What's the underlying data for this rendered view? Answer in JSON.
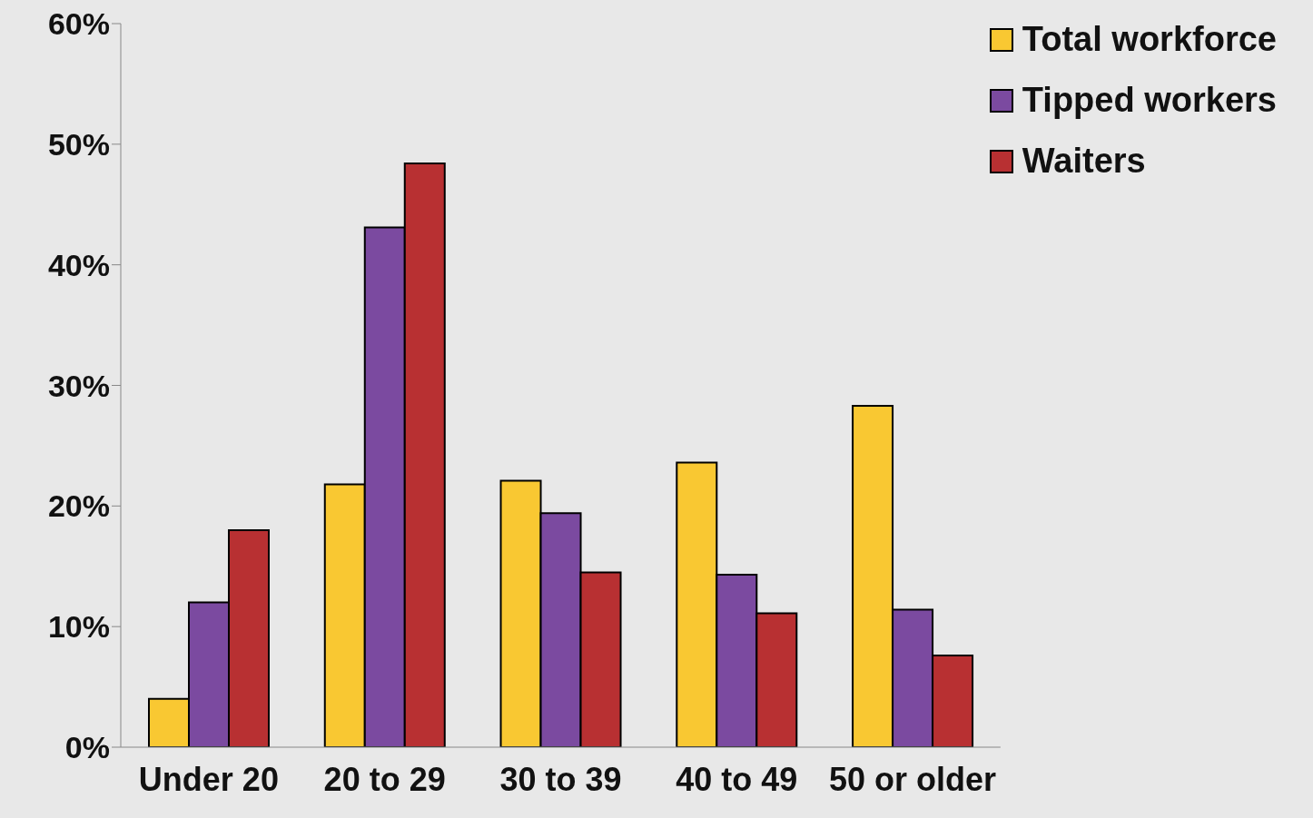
{
  "chart_data": {
    "type": "bar",
    "categories": [
      "Under 20",
      "20 to 29",
      "30 to 39",
      "40 to 49",
      "50 or older"
    ],
    "series": [
      {
        "name": "Total workforce",
        "color": "#f9c832",
        "values": [
          4.0,
          21.8,
          22.1,
          23.6,
          28.3
        ]
      },
      {
        "name": "Tipped workers",
        "color": "#7b4aa0",
        "values": [
          12.0,
          43.1,
          19.4,
          14.3,
          11.4
        ]
      },
      {
        "name": "Waiters",
        "color": "#b83032",
        "values": [
          18.0,
          48.4,
          14.5,
          11.1,
          7.6
        ]
      }
    ],
    "ylim": [
      0,
      60
    ],
    "yticks": [
      {
        "value": 0,
        "label": "0%"
      },
      {
        "value": 10,
        "label": "10%"
      },
      {
        "value": 20,
        "label": "20%"
      },
      {
        "value": 30,
        "label": "30%"
      },
      {
        "value": 40,
        "label": "40%"
      },
      {
        "value": 50,
        "label": "50%"
      },
      {
        "value": 60,
        "label": "60%"
      }
    ],
    "grid": false,
    "legend": "top right"
  }
}
